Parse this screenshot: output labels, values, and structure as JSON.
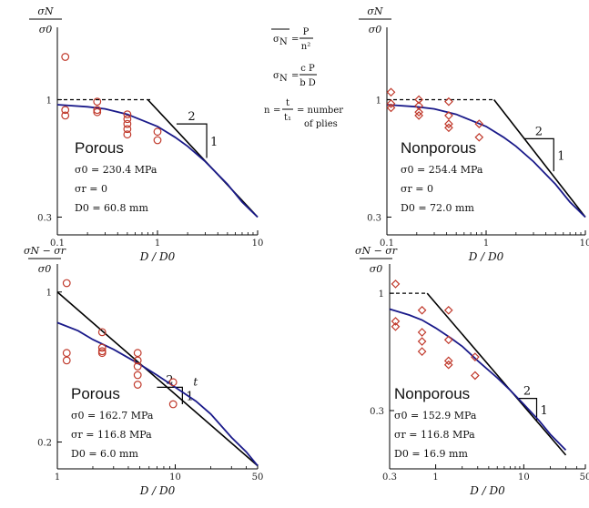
{
  "chart_data": [
    {
      "id": "tl",
      "type": "scatter",
      "x_scale": "log",
      "y_scale": "log",
      "xlim": [
        0.1,
        10
      ],
      "ylim": [
        0.25,
        2.1
      ],
      "x_ticks": [
        "0.1",
        "1",
        "10"
      ],
      "y_ticks": [
        "0.3",
        "1"
      ],
      "ylabel_top": "σN",
      "ylabel_bottom": "σ0",
      "xlabel": "D / D0",
      "material": "Porous",
      "params": [
        "σ0 = 230.4 MPa",
        "σr = 0",
        "D0 = 60.8 mm"
      ],
      "formulas": [
        "σN = P / n²",
        "σN = cP / bD",
        "n = t / t1 = number",
        "of plies"
      ],
      "slope_labels": [
        "2",
        "1"
      ],
      "points": [
        [
          0.12,
          1.55
        ],
        [
          0.12,
          0.9
        ],
        [
          0.12,
          0.85
        ],
        [
          0.25,
          0.98
        ],
        [
          0.25,
          0.9
        ],
        [
          0.25,
          0.88
        ],
        [
          0.5,
          0.86
        ],
        [
          0.5,
          0.82
        ],
        [
          0.5,
          0.78
        ],
        [
          0.5,
          0.74
        ],
        [
          0.5,
          0.7
        ],
        [
          1.0,
          0.72
        ],
        [
          1.0,
          0.66
        ]
      ],
      "curve": [
        [
          0.1,
          0.95
        ],
        [
          0.2,
          0.93
        ],
        [
          0.3,
          0.91
        ],
        [
          0.5,
          0.86
        ],
        [
          0.7,
          0.81
        ],
        [
          1,
          0.76
        ],
        [
          1.5,
          0.68
        ],
        [
          2,
          0.62
        ],
        [
          3,
          0.53
        ],
        [
          5,
          0.42
        ],
        [
          7,
          0.35
        ],
        [
          10,
          0.3
        ]
      ],
      "asymptote_horizontal": 1.0,
      "asymptote_horizontal_x": [
        0.1,
        0.9
      ],
      "asymptote_slope": [
        [
          0.8,
          1.0
        ],
        [
          10,
          0.3
        ]
      ],
      "slope_triangle": [
        [
          1.55,
          0.78
        ],
        [
          3.1,
          0.78
        ],
        [
          3.1,
          0.55
        ]
      ]
    },
    {
      "id": "tr",
      "type": "scatter",
      "x_scale": "log",
      "y_scale": "log",
      "xlim": [
        0.1,
        10
      ],
      "ylim": [
        0.25,
        2.1
      ],
      "x_ticks": [
        "0.1",
        "1",
        "10"
      ],
      "y_ticks": [
        "0.3",
        "1"
      ],
      "ylabel_top": "σN",
      "ylabel_bottom": "σ0",
      "xlabel": "D / D0",
      "material": "Nonporous",
      "params": [
        "σ0 = 254.4 MPa",
        "σr = 0",
        "D0 = 72.0 mm"
      ],
      "slope_labels": [
        "2",
        "1"
      ],
      "points": [
        [
          0.11,
          1.08
        ],
        [
          0.11,
          0.96
        ],
        [
          0.11,
          0.92
        ],
        [
          0.21,
          1.0
        ],
        [
          0.21,
          0.94
        ],
        [
          0.21,
          0.88
        ],
        [
          0.21,
          0.85
        ],
        [
          0.42,
          0.98
        ],
        [
          0.42,
          0.85
        ],
        [
          0.42,
          0.78
        ],
        [
          0.42,
          0.75
        ],
        [
          0.85,
          0.78
        ],
        [
          0.85,
          0.68
        ]
      ],
      "curve": [
        [
          0.1,
          0.95
        ],
        [
          0.2,
          0.93
        ],
        [
          0.3,
          0.91
        ],
        [
          0.5,
          0.86
        ],
        [
          0.7,
          0.81
        ],
        [
          1,
          0.76
        ],
        [
          1.5,
          0.68
        ],
        [
          2,
          0.62
        ],
        [
          3,
          0.53
        ],
        [
          5,
          0.42
        ],
        [
          7,
          0.35
        ],
        [
          10,
          0.3
        ]
      ],
      "asymptote_horizontal": 1.0,
      "asymptote_horizontal_x": [
        0.1,
        1.2
      ],
      "asymptote_slope": [
        [
          1.2,
          1.0
        ],
        [
          10,
          0.3
        ]
      ],
      "slope_triangle": [
        [
          2.4,
          0.67
        ],
        [
          4.8,
          0.67
        ],
        [
          4.8,
          0.48
        ]
      ]
    },
    {
      "id": "bl",
      "type": "scatter",
      "x_scale": "log",
      "y_scale": "log",
      "xlim": [
        1,
        50
      ],
      "ylim": [
        0.15,
        1.35
      ],
      "x_ticks": [
        "1",
        "10",
        "50"
      ],
      "y_ticks": [
        "0.2",
        "1"
      ],
      "ylabel_top": "σN − σr",
      "ylabel_bottom": "σ0",
      "xlabel": "D / D0",
      "material": "Porous",
      "params": [
        "σ0 = 162.7 MPa",
        "σr = 116.8 MPa",
        "D0 = 6.0 mm"
      ],
      "slope_labels": [
        "2",
        "1",
        "t"
      ],
      "points": [
        [
          1.2,
          1.1
        ],
        [
          1.2,
          0.52
        ],
        [
          1.2,
          0.48
        ],
        [
          2.4,
          0.65
        ],
        [
          2.4,
          0.55
        ],
        [
          2.4,
          0.53
        ],
        [
          2.4,
          0.52
        ],
        [
          4.8,
          0.52
        ],
        [
          4.8,
          0.48
        ],
        [
          4.8,
          0.45
        ],
        [
          4.8,
          0.41
        ],
        [
          4.8,
          0.37
        ],
        [
          9.6,
          0.38
        ],
        [
          9.6,
          0.3
        ]
      ],
      "curve": [
        [
          1,
          0.72
        ],
        [
          1.5,
          0.66
        ],
        [
          2,
          0.6
        ],
        [
          3,
          0.54
        ],
        [
          5,
          0.46
        ],
        [
          7,
          0.41
        ],
        [
          10,
          0.36
        ],
        [
          15,
          0.31
        ],
        [
          20,
          0.27
        ],
        [
          30,
          0.21
        ],
        [
          40,
          0.18
        ],
        [
          50,
          0.155
        ]
      ],
      "asymptote_slope": [
        [
          1,
          1.0
        ],
        [
          50,
          0.155
        ]
      ],
      "slope_triangle": [
        [
          7,
          0.36
        ],
        [
          11.5,
          0.36
        ],
        [
          11.5,
          0.3
        ]
      ]
    },
    {
      "id": "br",
      "type": "scatter",
      "x_scale": "log",
      "y_scale": "log",
      "xlim": [
        0.3,
        50
      ],
      "ylim": [
        0.165,
        1.35
      ],
      "x_ticks": [
        "0.3",
        "1",
        "10",
        "50"
      ],
      "y_ticks": [
        "0.3",
        "1"
      ],
      "ylabel_top": "σN − σr",
      "ylabel_bottom": "σ0",
      "xlabel": "D / D0",
      "material": "Nonporous",
      "params": [
        "σ0 = 152.9 MPa",
        "σr = 116.8 MPa",
        "D0 = 16.9 mm"
      ],
      "slope_labels": [
        "2",
        "1"
      ],
      "points": [
        [
          0.35,
          1.1
        ],
        [
          0.35,
          0.75
        ],
        [
          0.35,
          0.71
        ],
        [
          0.7,
          0.84
        ],
        [
          0.7,
          0.67
        ],
        [
          0.7,
          0.61
        ],
        [
          0.7,
          0.55
        ],
        [
          1.4,
          0.84
        ],
        [
          1.4,
          0.62
        ],
        [
          1.4,
          0.5
        ],
        [
          1.4,
          0.48
        ],
        [
          2.8,
          0.52
        ],
        [
          2.8,
          0.43
        ]
      ],
      "curve": [
        [
          0.3,
          0.85
        ],
        [
          0.5,
          0.8
        ],
        [
          0.7,
          0.76
        ],
        [
          1,
          0.7
        ],
        [
          1.5,
          0.63
        ],
        [
          2,
          0.58
        ],
        [
          3,
          0.5
        ],
        [
          5,
          0.42
        ],
        [
          7,
          0.37
        ],
        [
          10,
          0.32
        ],
        [
          15,
          0.27
        ],
        [
          20,
          0.235
        ],
        [
          30,
          0.2
        ]
      ],
      "asymptote_horizontal": 1.0,
      "asymptote_horizontal_x": [
        0.3,
        0.8
      ],
      "asymptote_slope": [
        [
          0.8,
          1.0
        ],
        [
          30,
          0.19
        ]
      ],
      "slope_triangle": [
        [
          8.5,
          0.34
        ],
        [
          14,
          0.34
        ],
        [
          14,
          0.27
        ]
      ]
    }
  ]
}
